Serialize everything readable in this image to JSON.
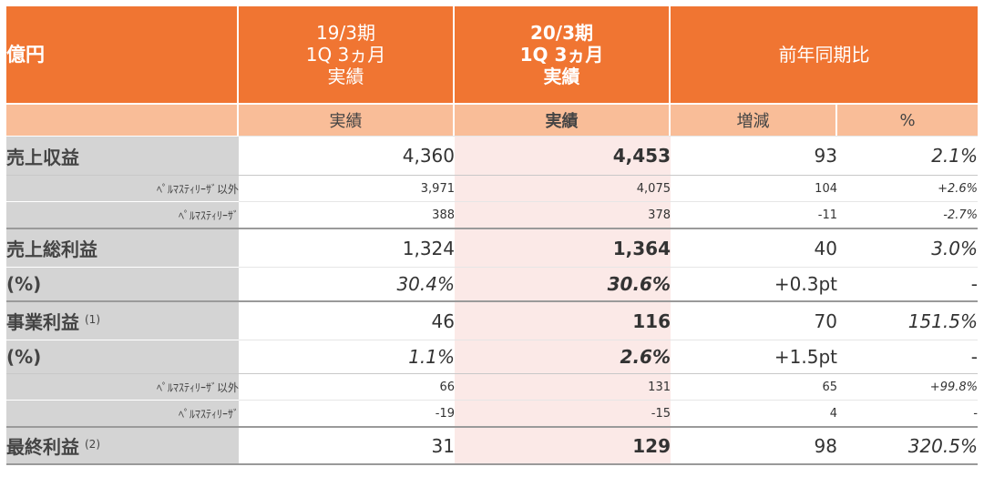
{
  "header": {
    "unit_label": "億円",
    "col_prev": [
      "19/3期",
      "1Q 3ヵ月",
      "実績"
    ],
    "col_curr": [
      "20/3期",
      "1Q 3ヵ月",
      "実績"
    ],
    "col_yoy": "前年同期比"
  },
  "subheader": {
    "prev": "実績",
    "curr": "実績",
    "change": "増減",
    "percent": "%"
  },
  "rows": [
    {
      "label": "売上収益",
      "prev": "4,360",
      "curr": "4,453",
      "change": "93",
      "percent": "2.1%"
    },
    {
      "label": "ﾍﾟﾙﾏｽﾃｨﾘｰｻﾞ以外",
      "prev": "3,971",
      "curr": "4,075",
      "change": "104",
      "percent": "+2.6%"
    },
    {
      "label": "ﾍﾟﾙﾏｽﾃｨﾘｰｻﾞ",
      "prev": "388",
      "curr": "378",
      "change": "-11",
      "percent": "-2.7%"
    },
    {
      "label": "売上総利益",
      "prev": "1,324",
      "curr": "1,364",
      "change": "40",
      "percent": "3.0%"
    },
    {
      "label": "(%)",
      "prev": "30.4%",
      "curr": "30.6%",
      "change": "+0.3pt",
      "percent": "-"
    },
    {
      "label": "事業利益",
      "note": "(1)",
      "prev": "46",
      "curr": "116",
      "change": "70",
      "percent": "151.5%"
    },
    {
      "label": "(%)",
      "prev": "1.1%",
      "curr": "2.6%",
      "change": "+1.5pt",
      "percent": "-"
    },
    {
      "label": "ﾍﾟﾙﾏｽﾃｨﾘｰｻﾞ以外",
      "prev": "66",
      "curr": "131",
      "change": "65",
      "percent": "+99.8%"
    },
    {
      "label": "ﾍﾟﾙﾏｽﾃｨﾘｰｻﾞ",
      "prev": "-19",
      "curr": "-15",
      "change": "4",
      "percent": "-"
    },
    {
      "label": "最終利益",
      "note": "(2)",
      "prev": "31",
      "curr": "129",
      "change": "98",
      "percent": "320.5%"
    }
  ],
  "colors": {
    "header_orange": "#f07532",
    "subheader_orange": "#f9bd98",
    "label_gray": "#d4d4d4",
    "current_column_tint": "#fbe9e7"
  }
}
